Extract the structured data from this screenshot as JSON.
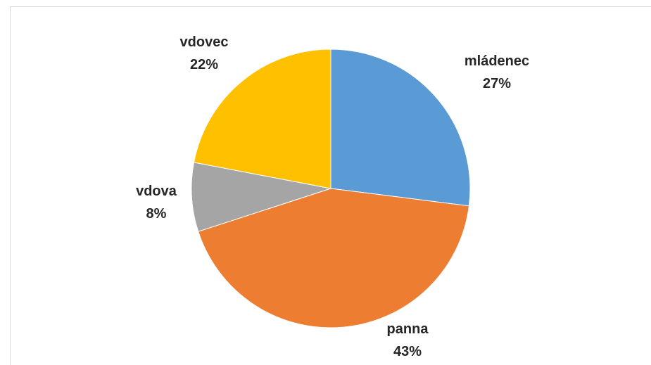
{
  "chart_data": {
    "type": "pie",
    "title": "",
    "slices": [
      {
        "name": "mládenec",
        "value": 27,
        "label_pct": "27%",
        "color": "#5B9BD5"
      },
      {
        "name": "panna",
        "value": 43,
        "label_pct": "43%",
        "color": "#ED7D31"
      },
      {
        "name": "vdova",
        "value": 8,
        "label_pct": "8%",
        "color": "#A5A5A5"
      },
      {
        "name": "vdovec",
        "value": 22,
        "label_pct": "22%",
        "color": "#FFC000"
      }
    ],
    "start_angle": "12 o'clock",
    "direction": "clockwise",
    "legend": "none",
    "data_labels": "category name and percentage, outside end"
  }
}
